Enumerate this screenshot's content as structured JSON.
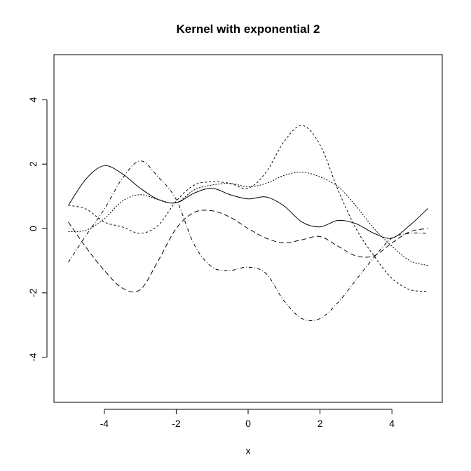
{
  "chart_data": {
    "type": "line",
    "title": "Kernel with exponential 2",
    "xlabel": "x",
    "ylabel": "",
    "xlim": [
      -5.4,
      5.4
    ],
    "ylim": [
      -5.4,
      5.4
    ],
    "x_ticks": [
      -4,
      -2,
      0,
      2,
      4
    ],
    "x_tick_labels": [
      "-4",
      "-2",
      "0",
      "2",
      "4"
    ],
    "y_ticks": [
      -4,
      -2,
      0,
      2,
      4
    ],
    "y_tick_labels": [
      "-4",
      "-2",
      "0",
      "2",
      "4"
    ],
    "grid": false,
    "legend": "none",
    "series": [
      {
        "dash": "solid",
        "x": [
          -5,
          -4.5,
          -4,
          -3.5,
          -3,
          -2.5,
          -2,
          -1.5,
          -1,
          -0.5,
          0,
          0.5,
          1,
          1.5,
          2,
          2.5,
          3,
          3.5,
          4,
          4.5,
          5
        ],
        "y": [
          0.72,
          1.55,
          1.95,
          1.7,
          1.25,
          0.9,
          0.8,
          1.1,
          1.25,
          1.05,
          0.92,
          0.98,
          0.7,
          0.2,
          0.05,
          0.25,
          0.15,
          -0.15,
          -0.3,
          0.1,
          0.62
        ]
      },
      {
        "dash": "dotted",
        "x": [
          -5,
          -4.5,
          -4,
          -3.5,
          -3,
          -2.5,
          -2,
          -1.5,
          -1,
          -0.5,
          0,
          0.5,
          1,
          1.5,
          2,
          2.5,
          3,
          3.5,
          4,
          4.5,
          5
        ],
        "y": [
          -0.1,
          -0.05,
          0.3,
          0.85,
          1.05,
          0.9,
          0.8,
          1.2,
          1.35,
          1.4,
          1.3,
          1.4,
          1.65,
          1.75,
          1.6,
          1.3,
          0.7,
          0.0,
          -0.55,
          -1.0,
          -1.15
        ]
      },
      {
        "dash": "shortdash",
        "x": [
          -5,
          -4.5,
          -4,
          -3.5,
          -3,
          -2.5,
          -2,
          -1.5,
          -1,
          -0.5,
          0,
          0.5,
          1,
          1.5,
          2,
          2.5,
          3,
          3.5,
          4,
          4.5,
          5
        ],
        "y": [
          0.72,
          0.6,
          0.2,
          0.05,
          -0.15,
          0.1,
          0.85,
          1.35,
          1.45,
          1.4,
          1.25,
          1.75,
          2.7,
          3.2,
          2.6,
          1.2,
          0.0,
          -0.85,
          -1.55,
          -1.9,
          -1.95
        ]
      },
      {
        "dash": "longdash",
        "x": [
          -5,
          -4.5,
          -4,
          -3.5,
          -3,
          -2.5,
          -2,
          -1.5,
          -1,
          -0.5,
          0,
          0.5,
          1,
          1.5,
          2,
          2.5,
          3,
          3.5,
          4,
          4.5,
          5
        ],
        "y": [
          0.2,
          -0.6,
          -1.3,
          -1.85,
          -1.9,
          -1.0,
          0.0,
          0.5,
          0.55,
          0.35,
          0.0,
          -0.3,
          -0.45,
          -0.35,
          -0.25,
          -0.55,
          -0.85,
          -0.85,
          -0.45,
          -0.1,
          0.0
        ]
      },
      {
        "dash": "dashdot",
        "x": [
          -5,
          -4.5,
          -4,
          -3.5,
          -3,
          -2.5,
          -2,
          -1.5,
          -1,
          -0.5,
          0,
          0.5,
          1,
          1.5,
          2,
          2.5,
          3,
          3.5,
          4,
          4.5,
          5
        ],
        "y": [
          -1.05,
          -0.2,
          0.6,
          1.55,
          2.1,
          1.6,
          0.9,
          -0.5,
          -1.2,
          -1.3,
          -1.2,
          -1.4,
          -2.25,
          -2.8,
          -2.8,
          -2.3,
          -1.6,
          -0.9,
          -0.3,
          -0.15,
          -0.15
        ]
      }
    ]
  }
}
